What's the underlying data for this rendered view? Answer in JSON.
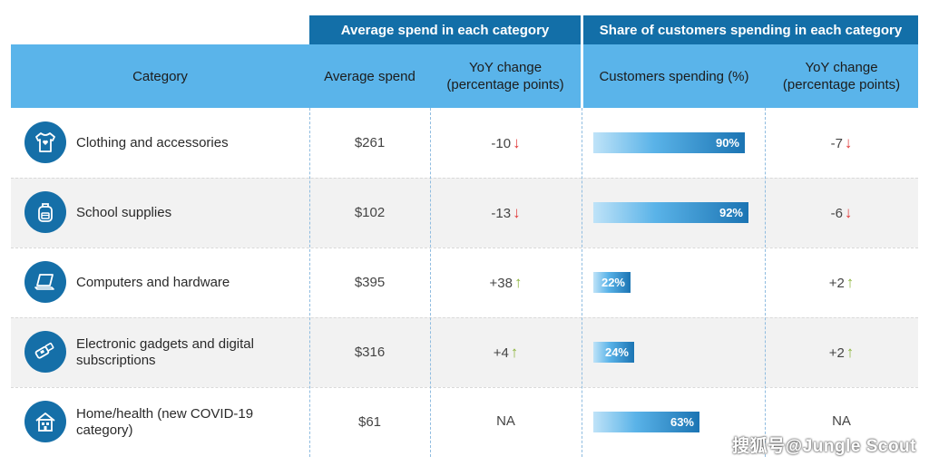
{
  "group_headers": {
    "avg_spend": "Average spend in each category",
    "share": "Share of customers spending in each category"
  },
  "col_headers": {
    "category": "Category",
    "avg_spend": "Average spend",
    "yoy_spend": "YoY change\n(percentage points)",
    "customers_spending": "Customers spending (%)",
    "yoy_share": "YoY change\n(percentage points)"
  },
  "colors": {
    "up": "#8cb43c",
    "down": "#e23b3b",
    "header_dark": "#136fa8",
    "header_light": "#5ab4ea"
  },
  "chart_data": {
    "type": "table",
    "rows": [
      {
        "icon": "t-shirt-icon",
        "category": "Clothing and accessories",
        "avg_spend": "$261",
        "yoy_spend": "-10",
        "yoy_spend_dir": "down",
        "customers_pct": 90,
        "customers_label": "90%",
        "yoy_share": "-7",
        "yoy_share_dir": "down"
      },
      {
        "icon": "backpack-icon",
        "category": "School supplies",
        "avg_spend": "$102",
        "yoy_spend": "-13",
        "yoy_spend_dir": "down",
        "customers_pct": 92,
        "customers_label": "92%",
        "yoy_share": "-6",
        "yoy_share_dir": "down"
      },
      {
        "icon": "laptop-icon",
        "category": "Computers and hardware",
        "avg_spend": "$395",
        "yoy_spend": "+38",
        "yoy_spend_dir": "up",
        "customers_pct": 22,
        "customers_label": "22%",
        "yoy_share": "+2",
        "yoy_share_dir": "up"
      },
      {
        "icon": "usb-gadget-icon",
        "category": "Electronic gadgets and digital subscriptions",
        "avg_spend": "$316",
        "yoy_spend": "+4",
        "yoy_spend_dir": "up",
        "customers_pct": 24,
        "customers_label": "24%",
        "yoy_share": "+2",
        "yoy_share_dir": "up"
      },
      {
        "icon": "house-icon",
        "category": "Home/health (new COVID-19 category)",
        "avg_spend": "$61",
        "yoy_spend": "NA",
        "yoy_spend_dir": "none",
        "customers_pct": 63,
        "customers_label": "63%",
        "yoy_share": "NA",
        "yoy_share_dir": "none"
      }
    ]
  },
  "watermark": "搜狐号@Jungle Scout"
}
